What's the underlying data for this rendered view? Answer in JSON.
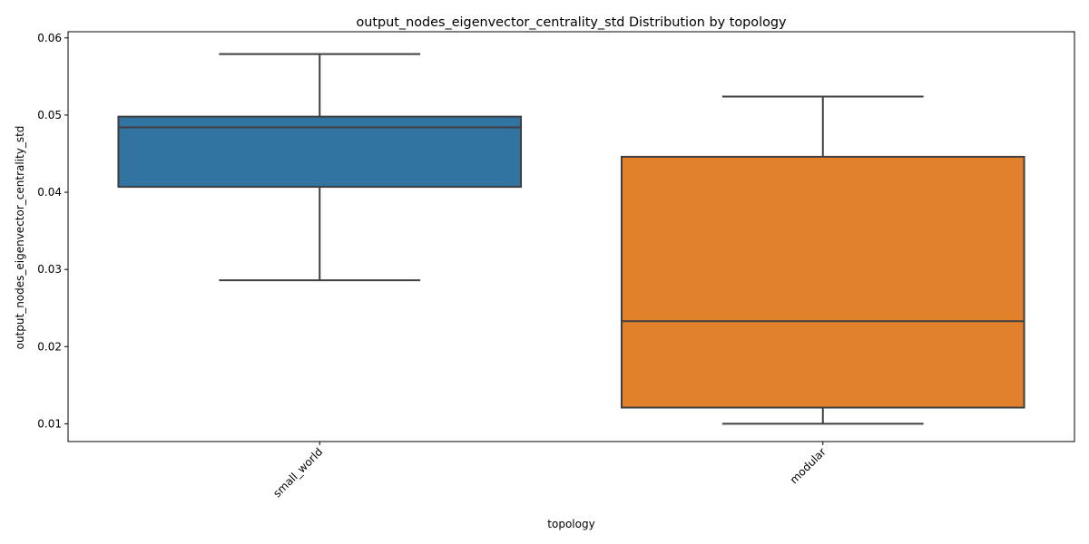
{
  "chart_data": {
    "type": "box",
    "title": "output_nodes_eigenvector_centrality_std Distribution by topology",
    "xlabel": "topology",
    "ylabel": "output_nodes_eigenvector_centrality_std",
    "ylim": [
      0.0077,
      0.0608
    ],
    "y_ticks": [
      "0.01",
      "0.02",
      "0.03",
      "0.04",
      "0.05",
      "0.06"
    ],
    "grid": false,
    "legend": "none",
    "x_tick_rotation_deg": -45,
    "categories": [
      "small_world",
      "modular"
    ],
    "boxes": [
      {
        "category": "small_world",
        "color": "#3274a1",
        "whisker_low": 0.0286,
        "q1": 0.0407,
        "median": 0.0484,
        "q3": 0.0498,
        "whisker_high": 0.0579
      },
      {
        "category": "modular",
        "color": "#e1812c",
        "whisker_low": 0.01,
        "q1": 0.0121,
        "median": 0.0233,
        "q3": 0.0446,
        "whisker_high": 0.0524
      }
    ],
    "line_color": "#3f3f3f"
  }
}
